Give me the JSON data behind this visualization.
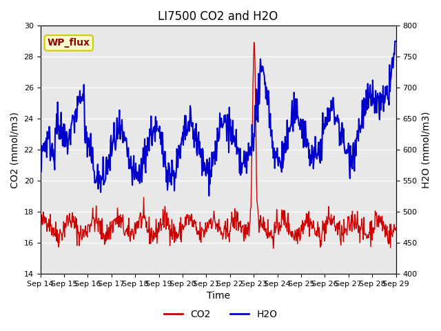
{
  "title": "LI7500 CO2 and H2O",
  "xlabel": "Time",
  "ylabel_left": "CO2 (mmol/m3)",
  "ylabel_right": "H2O (mmol/m3)",
  "site_label": "WP_flux",
  "x_tick_labels": [
    "Sep 14",
    "Sep 15",
    "Sep 16",
    "Sep 17",
    "Sep 18",
    "Sep 19",
    "Sep 20",
    "Sep 21",
    "Sep 22",
    "Sep 23",
    "Sep 24",
    "Sep 25",
    "Sep 26",
    "Sep 27",
    "Sep 28",
    "Sep 29"
  ],
  "ylim_left": [
    14,
    30
  ],
  "ylim_right": [
    400,
    800
  ],
  "co2_color": "#cc0000",
  "h2o_color": "#0000cc",
  "background_color": "#e8e8e8",
  "title_fontsize": 12,
  "label_fontsize": 10,
  "tick_fontsize": 8,
  "legend_fontsize": 10,
  "site_label_bg": "#ffffcc",
  "site_label_border": "#cccc00"
}
